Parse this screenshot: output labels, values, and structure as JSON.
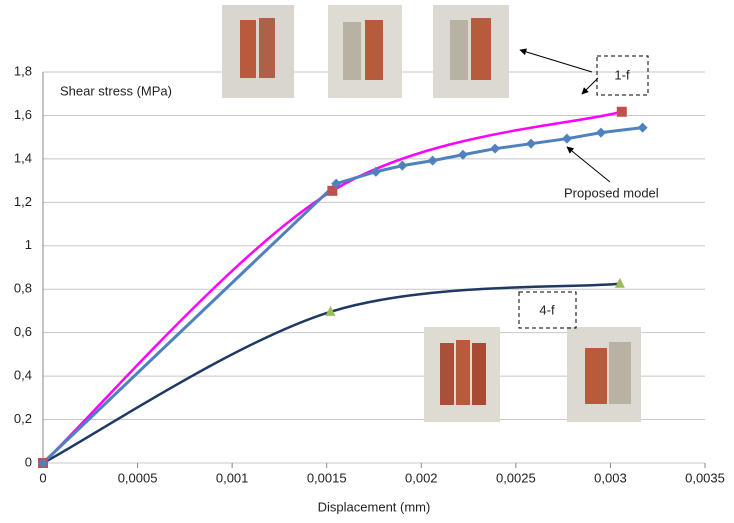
{
  "chart_data": {
    "type": "line",
    "y_label": "Shear stress (MPa)",
    "x_label": "Displacement (mm)",
    "xlim": [
      0,
      0.0035
    ],
    "xticks": [
      0,
      {
        "value": 0.0005,
        "label": "0,0005"
      },
      {
        "value": 0.001,
        "label": "0,001"
      },
      {
        "value": 0.0015,
        "label": "0,0015"
      },
      {
        "value": 0.002,
        "label": "0,002"
      },
      {
        "value": 0.0025,
        "label": "0,0025"
      },
      {
        "value": 0.003,
        "label": "0,003"
      },
      {
        "value": 0.0035,
        "label": "0,0035"
      }
    ],
    "ylim": [
      0,
      1.8
    ],
    "yticks": [
      0,
      {
        "value": 0.2,
        "label": "0,2"
      },
      {
        "value": 0.4,
        "label": "0,4"
      },
      {
        "value": 0.6,
        "label": "0,6"
      },
      {
        "value": 0.8,
        "label": "0,8"
      },
      1,
      {
        "value": 1.2,
        "label": "1,2"
      },
      {
        "value": 1.4,
        "label": "1,4"
      },
      {
        "value": 1.6,
        "label": "1,6"
      },
      {
        "value": 1.8,
        "label": "1,8"
      }
    ],
    "grid": true,
    "series": [
      {
        "name": "Proposed model",
        "color": "#4f81bd",
        "marker": "diamond",
        "smooth": false,
        "x": [
          0,
          0.00155,
          0.00176,
          0.0019,
          0.00206,
          0.00222,
          0.00239,
          0.00258,
          0.00277,
          0.00295,
          0.00317
        ],
        "values": [
          0,
          1.286,
          1.341,
          1.369,
          1.392,
          1.419,
          1.447,
          1.47,
          1.493,
          1.521,
          1.544
        ]
      },
      {
        "name": "1-f",
        "color": "#ff00ff",
        "marker_color": "#c0504d",
        "marker": "square",
        "smooth": true,
        "x": [
          0,
          0.00153,
          0.00306
        ],
        "values": [
          0,
          1.253,
          1.617
        ]
      },
      {
        "name": "4-f",
        "color": "#1f3864",
        "marker_color": "#9bbb59",
        "marker": "triangle",
        "smooth": true,
        "x": [
          0,
          0.00152,
          0.00305
        ],
        "values": [
          0,
          0.696,
          0.825
        ]
      }
    ]
  }
}
